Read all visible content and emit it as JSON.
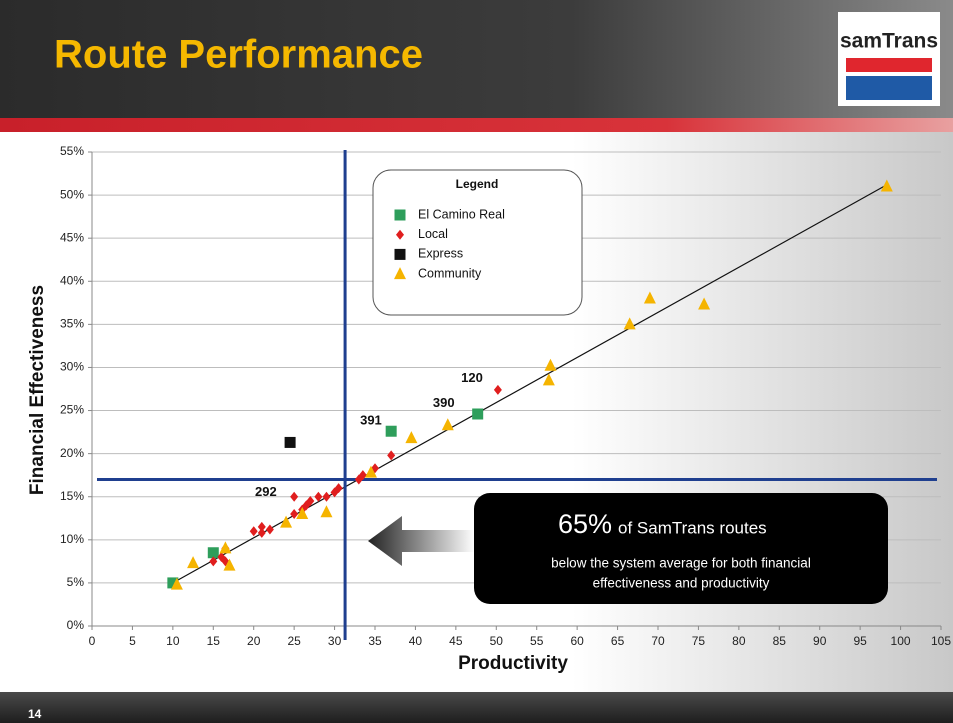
{
  "title": "Route Performance",
  "logo": "samTrans",
  "page_number": "14",
  "chart_data": {
    "type": "scatter",
    "x_label": "Productivity",
    "y_label": "Financial Effectiveness",
    "xlim": [
      0,
      105
    ],
    "xticks": [
      0,
      5,
      10,
      15,
      20,
      25,
      30,
      35,
      40,
      45,
      50,
      55,
      60,
      65,
      70,
      75,
      80,
      85,
      90,
      95,
      100,
      105
    ],
    "ylim": [
      0,
      55
    ],
    "yticks": [
      {
        "value": 0,
        "label": "0%"
      },
      {
        "value": 5,
        "label": "5%"
      },
      {
        "value": 10,
        "label": "10%"
      },
      {
        "value": 15,
        "label": "15%"
      },
      {
        "value": 20,
        "label": "20%"
      },
      {
        "value": 25,
        "label": "25%"
      },
      {
        "value": 30,
        "label": "30%"
      },
      {
        "value": 35,
        "label": "35%"
      },
      {
        "value": 40,
        "label": "40%"
      },
      {
        "value": 45,
        "label": "45%"
      },
      {
        "value": 50,
        "label": "50%"
      },
      {
        "value": 55,
        "label": "55%"
      }
    ],
    "grid": true,
    "legend_title": "Legend",
    "series": [
      {
        "name": "El Camino Real",
        "color": "#2e9e5b",
        "marker": "square",
        "x": [
          10,
          15,
          37,
          47.7
        ],
        "values": [
          5,
          8.5,
          22.6,
          24.6
        ]
      },
      {
        "name": "Local",
        "color": "#e01e1e",
        "marker": "diamond",
        "x": [
          15,
          16,
          16.5,
          16.5,
          20,
          21,
          21,
          22,
          25,
          25,
          26,
          26.5,
          27,
          28,
          29,
          30,
          30.5,
          33,
          33.5,
          35,
          37,
          50.2
        ],
        "values": [
          7.5,
          8,
          7.5,
          9,
          11,
          11.5,
          10.8,
          11.2,
          15,
          13,
          13.5,
          14,
          14.5,
          15,
          15,
          15.5,
          16,
          17,
          17.5,
          18.3,
          19.8,
          27.4
        ]
      },
      {
        "name": "Express",
        "color": "#111111",
        "marker": "square",
        "x": [
          24.5
        ],
        "values": [
          21.3
        ]
      },
      {
        "name": "Community",
        "color": "#f5b400",
        "marker": "triangle",
        "x": [
          10.5,
          12.5,
          16.5,
          17,
          24,
          26,
          29,
          34.5,
          39.5,
          44,
          56.5,
          56.7,
          66.5,
          69,
          75.7,
          98.3
        ],
        "values": [
          4.8,
          7.3,
          9,
          7,
          12,
          13,
          13.2,
          17.8,
          21.8,
          23.3,
          28.5,
          30.2,
          35,
          38,
          37.3,
          51
        ]
      }
    ],
    "trendline": {
      "x": [
        10,
        98.5
      ],
      "values": [
        5,
        51.3
      ]
    },
    "reference_lines": {
      "x": 31.3,
      "y": 17
    },
    "point_labels": [
      {
        "text": "292",
        "x": 21.5,
        "y": 15.5
      },
      {
        "text": "391",
        "x": 34.5,
        "y": 23.8
      },
      {
        "text": "390",
        "x": 43.5,
        "y": 25.8
      },
      {
        "text": "120",
        "x": 47,
        "y": 28.7
      }
    ],
    "callout": {
      "value": "65%",
      "text": "of SamTrans routes",
      "detail": [
        "below the system average for both financial",
        "effectiveness and productivity"
      ]
    }
  }
}
